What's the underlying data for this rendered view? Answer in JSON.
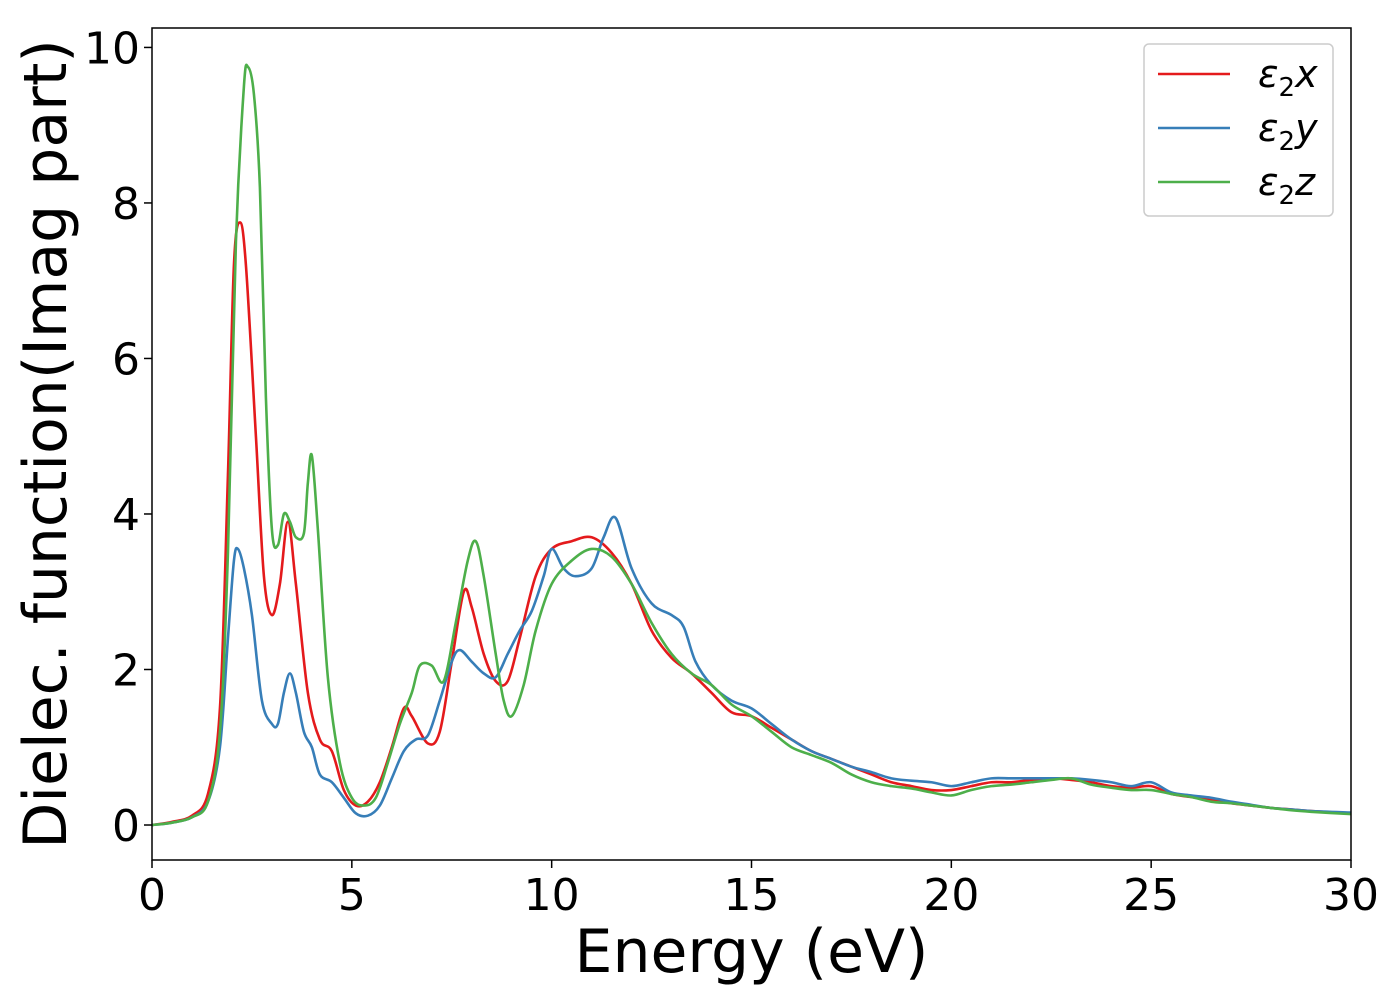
{
  "chart_data": {
    "type": "line",
    "xlabel": "Energy (eV)",
    "ylabel": "Dielec. function(Imag part)",
    "xlim": [
      0,
      30
    ],
    "ylim": [
      -0.45,
      10.25
    ],
    "xticks": [
      "0",
      "5",
      "10",
      "15",
      "20",
      "25",
      "30"
    ],
    "yticks": [
      "0",
      "2",
      "4",
      "6",
      "8",
      "10"
    ],
    "grid": false,
    "legend_position": "top-right",
    "series": [
      {
        "name": "ε₂x",
        "legend_base": "ε",
        "legend_sub": "2",
        "legend_var": "x",
        "color": "#e41a1c",
        "points": [
          [
            0,
            0
          ],
          [
            0.5,
            0.04
          ],
          [
            1,
            0.12
          ],
          [
            1.4,
            0.4
          ],
          [
            1.7,
            1.5
          ],
          [
            1.9,
            4.5
          ],
          [
            2.05,
            7.2
          ],
          [
            2.2,
            7.75
          ],
          [
            2.35,
            7.2
          ],
          [
            2.6,
            5.0
          ],
          [
            2.8,
            3.2
          ],
          [
            3.0,
            2.7
          ],
          [
            3.2,
            3.1
          ],
          [
            3.4,
            3.9
          ],
          [
            3.6,
            3.1
          ],
          [
            3.9,
            1.7
          ],
          [
            4.2,
            1.1
          ],
          [
            4.5,
            0.95
          ],
          [
            4.8,
            0.45
          ],
          [
            5.1,
            0.25
          ],
          [
            5.4,
            0.3
          ],
          [
            5.7,
            0.55
          ],
          [
            6.0,
            1.0
          ],
          [
            6.3,
            1.5
          ],
          [
            6.5,
            1.4
          ],
          [
            6.9,
            1.05
          ],
          [
            7.2,
            1.2
          ],
          [
            7.5,
            2.1
          ],
          [
            7.8,
            3.0
          ],
          [
            8.0,
            2.8
          ],
          [
            8.3,
            2.2
          ],
          [
            8.6,
            1.85
          ],
          [
            8.9,
            1.85
          ],
          [
            9.2,
            2.4
          ],
          [
            9.6,
            3.2
          ],
          [
            10,
            3.55
          ],
          [
            10.5,
            3.65
          ],
          [
            11,
            3.7
          ],
          [
            11.5,
            3.5
          ],
          [
            12,
            3.1
          ],
          [
            12.5,
            2.5
          ],
          [
            13,
            2.15
          ],
          [
            13.5,
            1.95
          ],
          [
            14,
            1.7
          ],
          [
            14.5,
            1.45
          ],
          [
            15,
            1.4
          ],
          [
            15.5,
            1.25
          ],
          [
            16,
            1.1
          ],
          [
            16.5,
            0.95
          ],
          [
            17,
            0.85
          ],
          [
            17.5,
            0.75
          ],
          [
            18,
            0.65
          ],
          [
            18.5,
            0.55
          ],
          [
            19,
            0.5
          ],
          [
            19.5,
            0.45
          ],
          [
            20,
            0.45
          ],
          [
            20.5,
            0.5
          ],
          [
            21,
            0.55
          ],
          [
            21.5,
            0.55
          ],
          [
            22,
            0.58
          ],
          [
            22.5,
            0.6
          ],
          [
            23,
            0.58
          ],
          [
            23.5,
            0.55
          ],
          [
            24,
            0.5
          ],
          [
            24.5,
            0.48
          ],
          [
            25,
            0.5
          ],
          [
            25.5,
            0.4
          ],
          [
            26,
            0.36
          ],
          [
            26.5,
            0.32
          ],
          [
            27,
            0.28
          ],
          [
            27.5,
            0.25
          ],
          [
            28,
            0.22
          ],
          [
            28.5,
            0.2
          ],
          [
            29,
            0.18
          ],
          [
            30,
            0.15
          ]
        ]
      },
      {
        "name": "ε₂y",
        "legend_base": "ε",
        "legend_sub": "2",
        "legend_var": "y",
        "color": "#377eb8",
        "points": [
          [
            0,
            0
          ],
          [
            0.5,
            0.03
          ],
          [
            1,
            0.1
          ],
          [
            1.4,
            0.3
          ],
          [
            1.7,
            1.0
          ],
          [
            1.9,
            2.4
          ],
          [
            2.05,
            3.4
          ],
          [
            2.15,
            3.55
          ],
          [
            2.3,
            3.3
          ],
          [
            2.5,
            2.7
          ],
          [
            2.75,
            1.6
          ],
          [
            3.0,
            1.3
          ],
          [
            3.15,
            1.3
          ],
          [
            3.3,
            1.7
          ],
          [
            3.45,
            1.95
          ],
          [
            3.6,
            1.7
          ],
          [
            3.8,
            1.2
          ],
          [
            4.0,
            1.0
          ],
          [
            4.2,
            0.65
          ],
          [
            4.5,
            0.55
          ],
          [
            4.8,
            0.35
          ],
          [
            5.1,
            0.15
          ],
          [
            5.4,
            0.12
          ],
          [
            5.7,
            0.25
          ],
          [
            6.0,
            0.6
          ],
          [
            6.3,
            0.95
          ],
          [
            6.6,
            1.1
          ],
          [
            6.9,
            1.15
          ],
          [
            7.2,
            1.6
          ],
          [
            7.5,
            2.1
          ],
          [
            7.7,
            2.25
          ],
          [
            8.0,
            2.1
          ],
          [
            8.3,
            1.95
          ],
          [
            8.6,
            1.9
          ],
          [
            8.9,
            2.2
          ],
          [
            9.2,
            2.5
          ],
          [
            9.5,
            2.75
          ],
          [
            9.8,
            3.2
          ],
          [
            10,
            3.55
          ],
          [
            10.3,
            3.3
          ],
          [
            10.6,
            3.2
          ],
          [
            11,
            3.3
          ],
          [
            11.3,
            3.7
          ],
          [
            11.6,
            3.95
          ],
          [
            12,
            3.3
          ],
          [
            12.5,
            2.85
          ],
          [
            13,
            2.7
          ],
          [
            13.3,
            2.55
          ],
          [
            13.6,
            2.1
          ],
          [
            14,
            1.8
          ],
          [
            14.5,
            1.6
          ],
          [
            15,
            1.5
          ],
          [
            15.5,
            1.3
          ],
          [
            16,
            1.1
          ],
          [
            16.5,
            0.95
          ],
          [
            17,
            0.85
          ],
          [
            17.5,
            0.75
          ],
          [
            18,
            0.68
          ],
          [
            18.5,
            0.6
          ],
          [
            19,
            0.57
          ],
          [
            19.5,
            0.55
          ],
          [
            20,
            0.5
          ],
          [
            20.5,
            0.55
          ],
          [
            21,
            0.6
          ],
          [
            21.5,
            0.6
          ],
          [
            22,
            0.6
          ],
          [
            22.5,
            0.6
          ],
          [
            23,
            0.6
          ],
          [
            23.5,
            0.58
          ],
          [
            24,
            0.55
          ],
          [
            24.5,
            0.5
          ],
          [
            25,
            0.55
          ],
          [
            25.5,
            0.42
          ],
          [
            26,
            0.38
          ],
          [
            26.5,
            0.35
          ],
          [
            27,
            0.3
          ],
          [
            27.5,
            0.26
          ],
          [
            28,
            0.22
          ],
          [
            28.5,
            0.2
          ],
          [
            29,
            0.18
          ],
          [
            30,
            0.16
          ]
        ]
      },
      {
        "name": "ε₂z",
        "legend_base": "ε",
        "legend_sub": "2",
        "legend_var": "z",
        "color": "#4daf4a",
        "points": [
          [
            0,
            0
          ],
          [
            0.5,
            0.03
          ],
          [
            1,
            0.1
          ],
          [
            1.4,
            0.3
          ],
          [
            1.7,
            1.2
          ],
          [
            1.9,
            3.5
          ],
          [
            2.1,
            7.5
          ],
          [
            2.3,
            9.5
          ],
          [
            2.4,
            9.75
          ],
          [
            2.55,
            9.4
          ],
          [
            2.7,
            8.2
          ],
          [
            2.85,
            5.5
          ],
          [
            3.0,
            3.8
          ],
          [
            3.15,
            3.6
          ],
          [
            3.3,
            4.0
          ],
          [
            3.45,
            3.9
          ],
          [
            3.6,
            3.7
          ],
          [
            3.8,
            3.75
          ],
          [
            3.9,
            4.4
          ],
          [
            4.0,
            4.75
          ],
          [
            4.15,
            3.8
          ],
          [
            4.4,
            1.9
          ],
          [
            4.7,
            0.8
          ],
          [
            5.0,
            0.35
          ],
          [
            5.3,
            0.25
          ],
          [
            5.6,
            0.35
          ],
          [
            5.9,
            0.8
          ],
          [
            6.2,
            1.3
          ],
          [
            6.5,
            1.7
          ],
          [
            6.7,
            2.05
          ],
          [
            7.0,
            2.05
          ],
          [
            7.3,
            1.85
          ],
          [
            7.6,
            2.6
          ],
          [
            7.9,
            3.4
          ],
          [
            8.1,
            3.65
          ],
          [
            8.3,
            3.2
          ],
          [
            8.6,
            2.2
          ],
          [
            8.8,
            1.6
          ],
          [
            9.0,
            1.4
          ],
          [
            9.3,
            1.8
          ],
          [
            9.6,
            2.5
          ],
          [
            10,
            3.1
          ],
          [
            10.5,
            3.4
          ],
          [
            11,
            3.55
          ],
          [
            11.5,
            3.45
          ],
          [
            12,
            3.1
          ],
          [
            12.5,
            2.6
          ],
          [
            13,
            2.2
          ],
          [
            13.5,
            1.95
          ],
          [
            14,
            1.8
          ],
          [
            14.5,
            1.55
          ],
          [
            15,
            1.4
          ],
          [
            15.5,
            1.2
          ],
          [
            16,
            1.0
          ],
          [
            16.5,
            0.9
          ],
          [
            17,
            0.8
          ],
          [
            17.5,
            0.65
          ],
          [
            18,
            0.55
          ],
          [
            18.5,
            0.5
          ],
          [
            19,
            0.47
          ],
          [
            19.5,
            0.42
          ],
          [
            20,
            0.38
          ],
          [
            20.5,
            0.45
          ],
          [
            21,
            0.5
          ],
          [
            21.5,
            0.52
          ],
          [
            22,
            0.55
          ],
          [
            22.5,
            0.58
          ],
          [
            23,
            0.6
          ],
          [
            23.5,
            0.52
          ],
          [
            24,
            0.48
          ],
          [
            24.5,
            0.45
          ],
          [
            25,
            0.45
          ],
          [
            25.5,
            0.4
          ],
          [
            26,
            0.36
          ],
          [
            26.5,
            0.3
          ],
          [
            27,
            0.28
          ],
          [
            27.5,
            0.25
          ],
          [
            28,
            0.22
          ],
          [
            28.5,
            0.19
          ],
          [
            29,
            0.17
          ],
          [
            30,
            0.14
          ]
        ]
      }
    ]
  }
}
